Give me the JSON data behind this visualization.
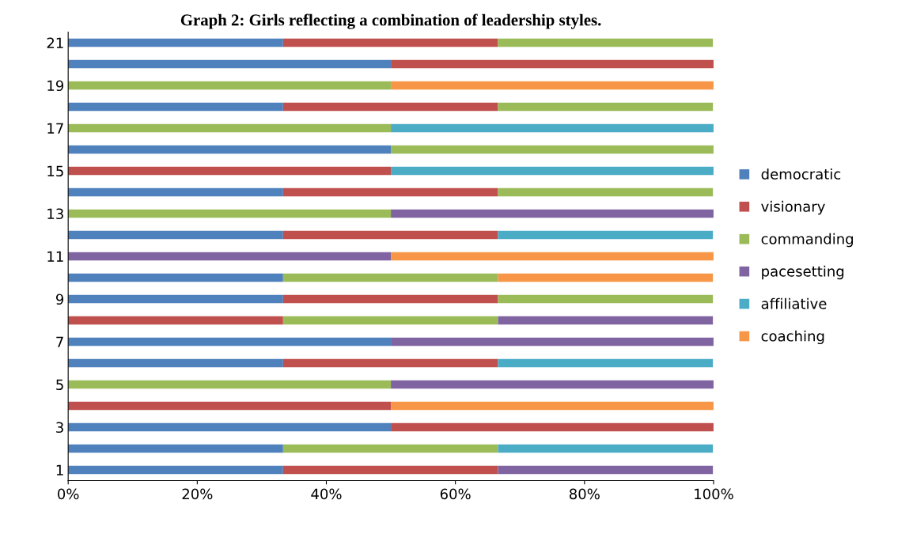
{
  "chart_data": {
    "type": "bar",
    "orientation": "horizontal",
    "stacked": true,
    "title": "Graph 2: Girls reflecting a combination of leadership styles.",
    "categories": [
      "21",
      null,
      "19",
      null,
      "17",
      null,
      "15",
      null,
      "13",
      null,
      "11",
      null,
      "9",
      null,
      "7",
      null,
      "5",
      null,
      "3",
      null,
      "1"
    ],
    "series": [
      {
        "name": "democratic",
        "color": "#4f81bd",
        "values": [
          33.3,
          50,
          null,
          33.3,
          null,
          50,
          null,
          33.3,
          null,
          33.3,
          null,
          33.3,
          33.3,
          null,
          50,
          33.3,
          null,
          null,
          50,
          33.3,
          33.3
        ]
      },
      {
        "name": "visionary",
        "color": "#c0504d",
        "values": [
          33.3,
          50,
          null,
          33.3,
          null,
          null,
          50,
          33.3,
          null,
          33.3,
          null,
          null,
          33.3,
          33.3,
          null,
          33.3,
          null,
          50,
          50,
          null,
          33.3
        ]
      },
      {
        "name": "commanding",
        "color": "#9bbb59",
        "values": [
          33.3,
          null,
          50,
          33.3,
          50,
          50,
          null,
          33.3,
          50,
          null,
          null,
          33.3,
          33.3,
          33.3,
          null,
          null,
          50,
          null,
          null,
          33.3,
          null
        ]
      },
      {
        "name": "pacesetting",
        "color": "#8064a2",
        "values": [
          null,
          null,
          null,
          null,
          null,
          null,
          null,
          null,
          50,
          null,
          50,
          null,
          null,
          33.3,
          50,
          null,
          50,
          null,
          null,
          null,
          33.3
        ]
      },
      {
        "name": "affiliative",
        "color": "#4bacc6",
        "values": [
          null,
          null,
          null,
          null,
          50,
          null,
          50,
          null,
          null,
          33.3,
          null,
          null,
          null,
          null,
          null,
          33.3,
          null,
          null,
          null,
          33.3,
          null
        ]
      },
      {
        "name": "coaching",
        "color": "#f79646",
        "values": [
          null,
          null,
          50,
          null,
          null,
          null,
          null,
          null,
          null,
          null,
          50,
          33.3,
          null,
          null,
          null,
          null,
          null,
          50,
          null,
          null,
          null
        ]
      }
    ],
    "xlim": [
      0,
      100
    ],
    "xticks": [
      {
        "value": 0,
        "label": "0%"
      },
      {
        "value": 20,
        "label": "20%"
      },
      {
        "value": 40,
        "label": "40%"
      },
      {
        "value": 60,
        "label": "60%"
      },
      {
        "value": 80,
        "label": "80%"
      },
      {
        "value": 100,
        "label": "100%"
      }
    ],
    "legend": "right",
    "grid": false
  }
}
